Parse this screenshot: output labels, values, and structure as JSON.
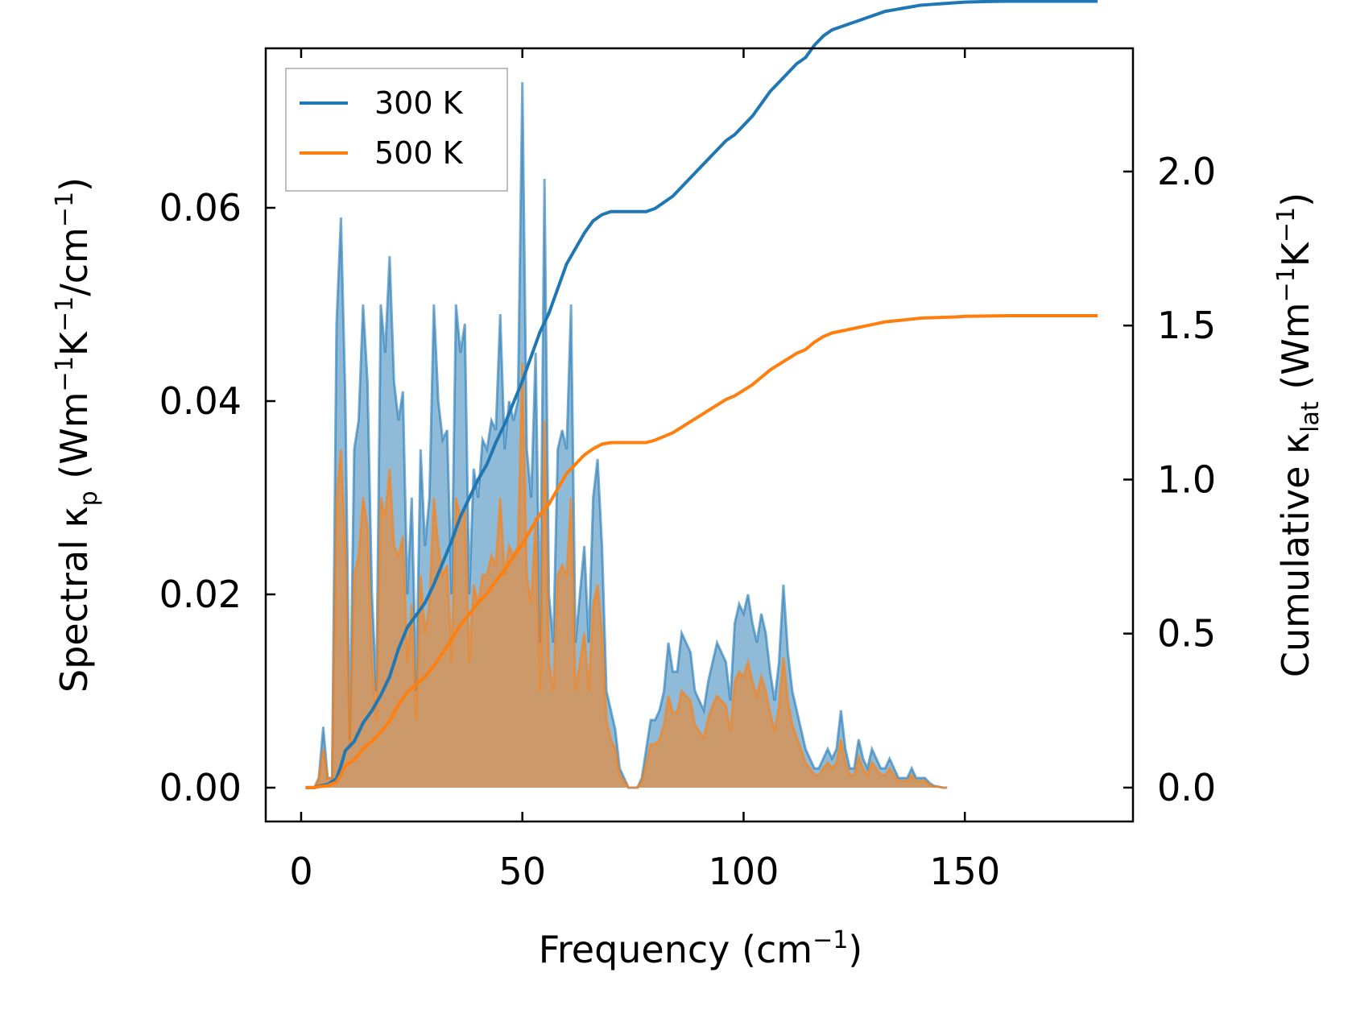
{
  "chart_data": {
    "type": "area",
    "xlabel": "Frequency (cm",
    "xlabel_sup": "−1",
    "xlabel_end": ")",
    "ylabel_left": "Spectral κ",
    "ylabel_left_sub": "p",
    "ylabel_left_unit": " (Wm",
    "ylabel_left_unit_sup1": "−1",
    "ylabel_left_unit_mid": "K",
    "ylabel_left_unit_sup2": "−1",
    "ylabel_left_unit_mid2": "/cm",
    "ylabel_left_unit_sup3": "−1",
    "ylabel_left_unit_end": ")",
    "ylabel_right": "Cumulative κ",
    "ylabel_right_sub": "lat",
    "ylabel_right_unit": " (Wm",
    "ylabel_right_unit_sup1": "−1",
    "ylabel_right_unit_mid": "K",
    "ylabel_right_unit_sup2": "−1",
    "ylabel_right_unit_end": ")",
    "xlim": [
      -8,
      188
    ],
    "ylim_left": [
      -0.0035,
      0.0765
    ],
    "ylim_right": [
      -0.11,
      2.4
    ],
    "xticks": [
      0,
      50,
      100,
      150
    ],
    "xtick_labels": [
      "0",
      "50",
      "100",
      "150"
    ],
    "yticks_left": [
      0.0,
      0.02,
      0.04,
      0.06
    ],
    "ytick_labels_left": [
      "0.00",
      "0.02",
      "0.04",
      "0.06"
    ],
    "yticks_right": [
      0.0,
      0.5,
      1.0,
      1.5,
      2.0
    ],
    "ytick_labels_right": [
      "0.0",
      "0.5",
      "1.0",
      "1.5",
      "2.0"
    ],
    "legend_position": "top-left",
    "colors": {
      "series_300": "#1f77b4",
      "series_500": "#ff7f0e",
      "fill_300": "#1f77b4",
      "fill_500": "#ff7f0e"
    },
    "legend": [
      {
        "name": "300 K",
        "color": "#1f77b4"
      },
      {
        "name": "500 K",
        "color": "#ff7f0e"
      }
    ],
    "spectral": {
      "x": [
        1,
        2,
        3,
        4,
        5,
        6,
        7,
        8,
        9,
        10,
        11,
        12,
        13,
        14,
        15,
        16,
        17,
        18,
        19,
        20,
        21,
        22,
        23,
        24,
        25,
        26,
        27,
        28,
        29,
        30,
        31,
        32,
        33,
        34,
        35,
        36,
        37,
        38,
        39,
        40,
        41,
        42,
        43,
        44,
        45,
        46,
        47,
        48,
        49,
        50,
        51,
        52,
        53,
        54,
        55,
        56,
        57,
        58,
        59,
        60,
        61,
        62,
        63,
        64,
        65,
        66,
        67,
        68,
        69,
        70,
        71,
        72,
        73,
        74,
        75,
        76,
        77,
        78,
        79,
        80,
        81,
        82,
        83,
        84,
        85,
        86,
        87,
        88,
        89,
        90,
        91,
        92,
        93,
        94,
        95,
        96,
        97,
        98,
        99,
        100,
        101,
        102,
        103,
        104,
        105,
        106,
        107,
        108,
        109,
        110,
        111,
        112,
        113,
        114,
        115,
        116,
        117,
        118,
        119,
        120,
        121,
        122,
        123,
        124,
        125,
        126,
        127,
        128,
        129,
        130,
        131,
        132,
        133,
        134,
        135,
        136,
        137,
        138,
        139,
        140,
        141,
        142,
        143,
        144,
        145,
        146,
        147,
        148,
        149,
        150,
        155,
        160,
        170,
        180
      ],
      "series": [
        {
          "name": "300 K",
          "values": [
            0,
            0,
            0,
            0.001,
            0.0063,
            0.001,
            0.001,
            0.048,
            0.059,
            0.04,
            0.005,
            0.035,
            0.038,
            0.05,
            0.042,
            0.02,
            0.01,
            0.05,
            0.045,
            0.055,
            0.042,
            0.038,
            0.041,
            0.02,
            0.03,
            0.01,
            0.035,
            0.025,
            0.03,
            0.05,
            0.04,
            0.036,
            0.037,
            0.02,
            0.05,
            0.045,
            0.048,
            0.02,
            0.033,
            0.03,
            0.036,
            0.035,
            0.038,
            0.037,
            0.049,
            0.035,
            0.04,
            0.038,
            0.04,
            0.073,
            0.035,
            0.03,
            0.045,
            0.015,
            0.063,
            0.02,
            0.015,
            0.035,
            0.037,
            0.035,
            0.05,
            0.015,
            0.02,
            0.025,
            0.015,
            0.03,
            0.034,
            0.025,
            0.01,
            0.008,
            0.006,
            0.002,
            0.001,
            0,
            0,
            0,
            0.001,
            0.004,
            0.007,
            0.007,
            0.008,
            0.01,
            0.015,
            0.012,
            0.012,
            0.016,
            0.015,
            0.014,
            0.01,
            0.009,
            0.008,
            0.011,
            0.013,
            0.015,
            0.014,
            0.013,
            0.009,
            0.017,
            0.019,
            0.018,
            0.02,
            0.017,
            0.015,
            0.018,
            0.016,
            0.012,
            0.009,
            0.013,
            0.021,
            0.014,
            0.01,
            0.008,
            0.006,
            0.004,
            0.003,
            0.002,
            0.002,
            0.003,
            0.004,
            0.003,
            0.004,
            0.008,
            0.004,
            0.002,
            0.002,
            0.005,
            0.003,
            0.002,
            0.004,
            0.003,
            0.002,
            0.002,
            0.003,
            0.002,
            0.001,
            0.001,
            0.001,
            0.002,
            0.001,
            0.001,
            0.001,
            0.0005,
            0.0002,
            0.0001,
            0,
            0
          ],
          "extra_note": ""
        },
        {
          "name": "500 K",
          "values": [
            0,
            0,
            0,
            0.001,
            0.004,
            0.001,
            0.001,
            0.03,
            0.035,
            0.025,
            0.004,
            0.022,
            0.024,
            0.03,
            0.027,
            0.013,
            0.007,
            0.03,
            0.028,
            0.033,
            0.025,
            0.024,
            0.026,
            0.013,
            0.019,
            0.007,
            0.022,
            0.016,
            0.019,
            0.03,
            0.025,
            0.022,
            0.023,
            0.013,
            0.03,
            0.028,
            0.029,
            0.013,
            0.021,
            0.019,
            0.022,
            0.022,
            0.024,
            0.023,
            0.03,
            0.022,
            0.025,
            0.024,
            0.025,
            0.044,
            0.022,
            0.019,
            0.028,
            0.01,
            0.038,
            0.013,
            0.01,
            0.022,
            0.023,
            0.022,
            0.03,
            0.01,
            0.013,
            0.016,
            0.01,
            0.019,
            0.021,
            0.016,
            0.007,
            0.005,
            0.004,
            0.0013,
            0.0007,
            0,
            0,
            0,
            0.0007,
            0.0025,
            0.0045,
            0.0045,
            0.005,
            0.0065,
            0.0095,
            0.0078,
            0.0078,
            0.01,
            0.0095,
            0.009,
            0.0065,
            0.0058,
            0.0052,
            0.0072,
            0.0085,
            0.0095,
            0.009,
            0.0085,
            0.0058,
            0.011,
            0.012,
            0.0115,
            0.013,
            0.011,
            0.0095,
            0.0115,
            0.01,
            0.0078,
            0.0058,
            0.0085,
            0.0135,
            0.009,
            0.0065,
            0.0052,
            0.0039,
            0.0026,
            0.002,
            0.0013,
            0.0013,
            0.002,
            0.0026,
            0.002,
            0.0026,
            0.005,
            0.0026,
            0.0013,
            0.0013,
            0.0032,
            0.002,
            0.0013,
            0.0026,
            0.002,
            0.0013,
            0.0013,
            0.002,
            0.0013,
            0.0007,
            0.0007,
            0.0007,
            0.0013,
            0.0007,
            0.0007,
            0.0007,
            0.0003,
            0.0001,
            0.0001,
            0,
            0
          ]
        }
      ]
    },
    "cumulative": {
      "x": [
        1,
        3,
        4,
        6,
        8,
        9,
        10,
        12,
        14,
        16,
        18,
        20,
        22,
        24,
        26,
        28,
        30,
        32,
        34,
        36,
        38,
        40,
        42,
        44,
        46,
        48,
        50,
        52,
        54,
        56,
        58,
        60,
        62,
        64,
        66,
        68,
        70,
        72,
        74,
        76,
        78,
        80,
        82,
        84,
        86,
        88,
        90,
        92,
        94,
        96,
        98,
        100,
        102,
        104,
        106,
        108,
        110,
        112,
        114,
        116,
        118,
        120,
        122,
        124,
        126,
        128,
        130,
        132,
        134,
        136,
        138,
        140,
        142,
        144,
        146,
        148,
        150,
        155,
        160,
        170,
        180
      ],
      "series": [
        {
          "name": "300 K",
          "values": [
            0,
            0,
            0.005,
            0.01,
            0.03,
            0.07,
            0.12,
            0.15,
            0.21,
            0.25,
            0.3,
            0.36,
            0.45,
            0.52,
            0.56,
            0.6,
            0.66,
            0.73,
            0.8,
            0.88,
            0.94,
            1.0,
            1.05,
            1.12,
            1.18,
            1.25,
            1.32,
            1.4,
            1.48,
            1.54,
            1.62,
            1.7,
            1.75,
            1.8,
            1.84,
            1.86,
            1.87,
            1.87,
            1.87,
            1.87,
            1.87,
            1.88,
            1.9,
            1.92,
            1.95,
            1.98,
            2.01,
            2.04,
            2.07,
            2.1,
            2.12,
            2.15,
            2.18,
            2.22,
            2.26,
            2.29,
            2.32,
            2.35,
            2.37,
            2.41,
            2.44,
            2.46,
            2.47,
            2.48,
            2.49,
            2.5,
            2.51,
            2.52,
            2.525,
            2.53,
            2.535,
            2.54,
            2.542,
            2.544,
            2.546,
            2.548,
            2.55,
            2.552,
            2.553,
            2.553,
            2.553
          ]
        },
        {
          "name": "500 K",
          "values": [
            0,
            0,
            0.003,
            0.006,
            0.018,
            0.042,
            0.072,
            0.09,
            0.126,
            0.15,
            0.18,
            0.216,
            0.27,
            0.31,
            0.335,
            0.36,
            0.395,
            0.437,
            0.48,
            0.528,
            0.563,
            0.6,
            0.63,
            0.671,
            0.707,
            0.75,
            0.79,
            0.84,
            0.888,
            0.92,
            0.97,
            1.02,
            1.05,
            1.08,
            1.1,
            1.115,
            1.12,
            1.12,
            1.12,
            1.12,
            1.12,
            1.128,
            1.14,
            1.152,
            1.17,
            1.188,
            1.206,
            1.224,
            1.242,
            1.26,
            1.272,
            1.29,
            1.308,
            1.332,
            1.356,
            1.374,
            1.392,
            1.41,
            1.422,
            1.446,
            1.464,
            1.476,
            1.482,
            1.488,
            1.494,
            1.5,
            1.506,
            1.512,
            1.515,
            1.518,
            1.521,
            1.524,
            1.525,
            1.526,
            1.527,
            1.528,
            1.53,
            1.531,
            1.532,
            1.532,
            1.532
          ]
        }
      ]
    }
  }
}
